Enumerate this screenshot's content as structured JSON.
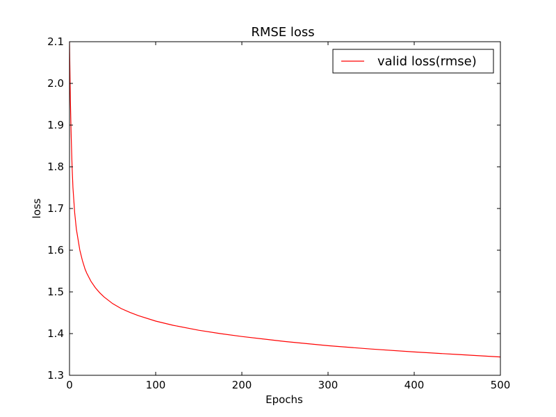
{
  "chart_data": {
    "type": "line",
    "title": "RMSE loss",
    "xlabel": "Epochs",
    "ylabel": "loss",
    "xlim": [
      0,
      500
    ],
    "ylim": [
      1.3,
      2.1
    ],
    "xticks": [
      0,
      100,
      200,
      300,
      400,
      500
    ],
    "xtick_labels": [
      "0",
      "100",
      "200",
      "300",
      "400",
      "500"
    ],
    "yticks": [
      1.3,
      1.4,
      1.5,
      1.6,
      1.7,
      1.8,
      1.9,
      2.0,
      2.1
    ],
    "ytick_labels": [
      "1.3",
      "1.4",
      "1.5",
      "1.6",
      "1.7",
      "1.8",
      "1.9",
      "2.0",
      "2.1"
    ],
    "grid": false,
    "legend_position": "top-right",
    "series": [
      {
        "name": "valid loss(rmse)",
        "color": "#ff0000",
        "x": [
          0,
          1,
          2,
          3,
          4,
          5,
          6,
          8,
          10,
          12,
          15,
          18,
          20,
          25,
          30,
          35,
          40,
          50,
          60,
          70,
          80,
          100,
          120,
          150,
          175,
          200,
          250,
          300,
          350,
          400,
          450,
          500
        ],
        "y": [
          2.1,
          1.96,
          1.87,
          1.8,
          1.75,
          1.72,
          1.69,
          1.65,
          1.625,
          1.6,
          1.575,
          1.555,
          1.545,
          1.525,
          1.51,
          1.498,
          1.488,
          1.472,
          1.46,
          1.451,
          1.443,
          1.43,
          1.42,
          1.408,
          1.4,
          1.393,
          1.381,
          1.371,
          1.363,
          1.356,
          1.35,
          1.344
        ]
      }
    ]
  }
}
